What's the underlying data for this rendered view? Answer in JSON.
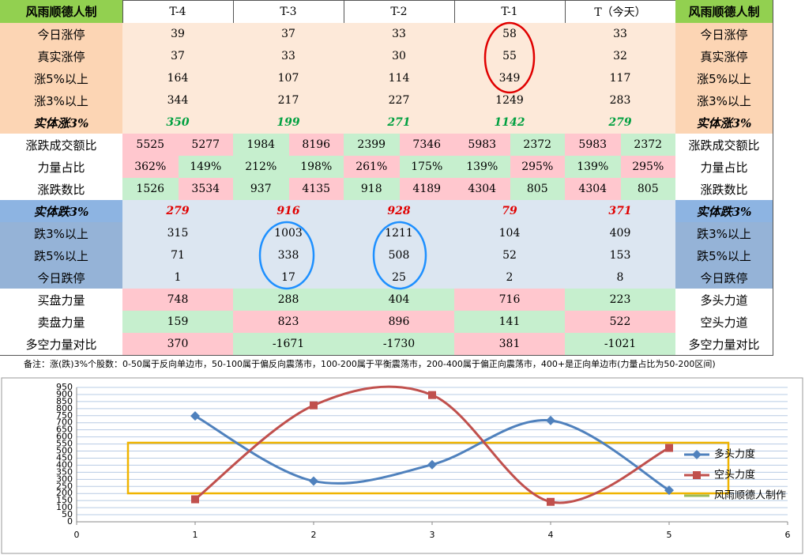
{
  "table": {
    "header": [
      "风雨顺德人制",
      "T-4",
      "T-3",
      "T-2",
      "T-1",
      "T（今天）",
      "风雨顺德人制"
    ],
    "rows": [
      [
        "今日涨停",
        39,
        37,
        33,
        58,
        33,
        "今日涨停"
      ],
      [
        "真实涨停",
        37,
        33,
        30,
        55,
        32,
        "真实涨停"
      ],
      [
        "涨5%以上",
        164,
        107,
        114,
        349,
        117,
        "涨5%以上"
      ],
      [
        "涨3%以上",
        344,
        217,
        227,
        1249,
        283,
        "涨3%以上"
      ],
      [
        "实体涨3%",
        350,
        199,
        271,
        1142,
        279,
        "实体涨3%"
      ],
      [
        "涨跌成交额比",
        [
          5525,
          5277
        ],
        [
          1984,
          8196
        ],
        [
          2399,
          7346
        ],
        [
          5983,
          2372
        ],
        [
          5983,
          2372
        ],
        "涨跌成交额比"
      ],
      [
        "力量占比",
        [
          "362%",
          "149%"
        ],
        [
          "212%",
          "198%"
        ],
        [
          "261%",
          "175%"
        ],
        [
          "139%",
          "295%"
        ],
        [
          "139%",
          "295%"
        ],
        "力量占比"
      ],
      [
        "涨跌数比",
        [
          1526,
          3534
        ],
        [
          937,
          4135
        ],
        [
          918,
          4189
        ],
        [
          4304,
          805
        ],
        [
          4304,
          805
        ],
        "涨跌数比"
      ],
      [
        "实体跌3%",
        279,
        916,
        928,
        79,
        371,
        "实体跌3%"
      ],
      [
        "跌3%以上",
        315,
        1003,
        1211,
        104,
        409,
        "跌3%以上"
      ],
      [
        "跌5%以上",
        71,
        338,
        508,
        52,
        153,
        "跌5%以上"
      ],
      [
        "今日跌停",
        1,
        17,
        25,
        2,
        8,
        "今日跌停"
      ],
      [
        "买盘力量",
        748,
        288,
        404,
        716,
        223,
        "多头力道"
      ],
      [
        "卖盘力量",
        159,
        823,
        896,
        141,
        522,
        "空头力道"
      ],
      [
        "多空力量对比",
        370,
        -1671,
        -1730,
        381,
        -1021,
        "多空力量对比"
      ]
    ],
    "note": "备注：涨(跌)3%个股数：0-50属于反向单边市，50-100属于偏反向震荡市，100-200属于平衡震荡市，200-400属于偏正向震荡市，400+是正向单边市(力量占比为50-200区间)"
  },
  "chart_data": {
    "type": "line",
    "x": [
      1,
      2,
      3,
      4,
      5
    ],
    "series": [
      {
        "name": "多头力度",
        "color": "#4f81bd",
        "values": [
          748,
          288,
          404,
          716,
          223
        ]
      },
      {
        "name": "空头力度",
        "color": "#c0504d",
        "values": [
          159,
          823,
          896,
          141,
          522
        ]
      },
      {
        "name": "风雨顺德人制作",
        "color": "#9bbb59",
        "values": [
          null,
          null,
          null,
          null,
          null
        ]
      }
    ],
    "xlim": [
      0,
      6
    ],
    "xticks": [
      0,
      1,
      2,
      3,
      4,
      5,
      6
    ],
    "ylim": [
      0,
      950
    ],
    "yticks": [
      0,
      50,
      100,
      150,
      200,
      250,
      300,
      350,
      400,
      450,
      500,
      550,
      600,
      650,
      700,
      750,
      800,
      850,
      900,
      950
    ],
    "grid": true,
    "smooth": true,
    "legend": "right"
  }
}
